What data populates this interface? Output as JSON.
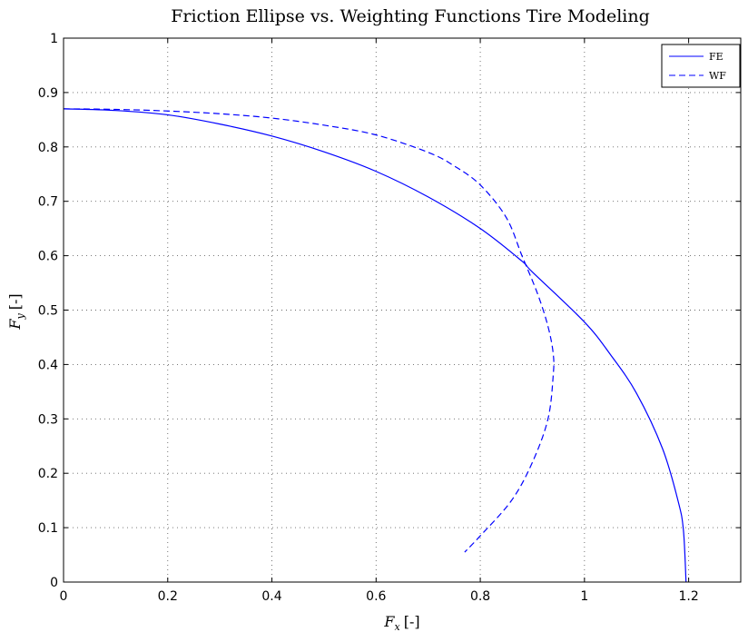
{
  "chart_data": {
    "type": "line",
    "title": "Friction Ellipse vs. Weighting Functions Tire Modeling",
    "xlabel_main": "F",
    "xlabel_sub": "x",
    "xlabel_unit": "[-]",
    "ylabel_main": "F",
    "ylabel_sub": "y",
    "ylabel_unit": "[-]",
    "xlim": [
      0,
      1.3
    ],
    "ylim": [
      0,
      1
    ],
    "xticks": [
      0,
      0.2,
      0.4,
      0.6,
      0.8,
      1,
      1.2
    ],
    "xtick_labels": [
      "0",
      "0.2",
      "0.4",
      "0.6",
      "0.8",
      "1",
      "1.2"
    ],
    "yticks": [
      0,
      0.1,
      0.2,
      0.3,
      0.4,
      0.5,
      0.6,
      0.7,
      0.8,
      0.9,
      1
    ],
    "ytick_labels": [
      "0",
      "0.1",
      "0.2",
      "0.3",
      "0.4",
      "0.5",
      "0.6",
      "0.7",
      "0.8",
      "0.9",
      "1"
    ],
    "grid": true,
    "legend_position": "top-right",
    "series": [
      {
        "name": "FE",
        "line_style": "solid",
        "color": "#0000ff",
        "x": [
          0,
          0.1,
          0.2,
          0.3,
          0.4,
          0.5,
          0.6,
          0.7,
          0.8,
          0.88,
          0.9,
          1.0,
          1.05,
          1.1,
          1.15,
          1.18,
          1.19,
          1.195
        ],
        "y": [
          0.87,
          0.867,
          0.859,
          0.842,
          0.82,
          0.791,
          0.755,
          0.708,
          0.65,
          0.59,
          0.57,
          0.478,
          0.418,
          0.347,
          0.245,
          0.148,
          0.095,
          0.0
        ]
      },
      {
        "name": "WF",
        "line_style": "dashed",
        "color": "#0000ff",
        "x": [
          0,
          0.1,
          0.2,
          0.3,
          0.4,
          0.5,
          0.6,
          0.7,
          0.75,
          0.8,
          0.85,
          0.88,
          0.91,
          0.93,
          0.94,
          0.94,
          0.93,
          0.9,
          0.86,
          0.8,
          0.77
        ],
        "y": [
          0.87,
          0.869,
          0.866,
          0.861,
          0.853,
          0.84,
          0.822,
          0.79,
          0.765,
          0.73,
          0.67,
          0.6,
          0.53,
          0.47,
          0.42,
          0.38,
          0.3,
          0.22,
          0.15,
          0.085,
          0.055
        ]
      }
    ]
  }
}
